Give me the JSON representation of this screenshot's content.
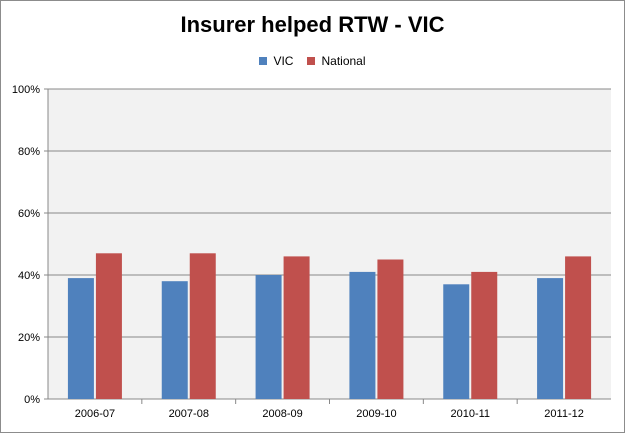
{
  "chart_data": {
    "type": "bar",
    "title": "Insurer helped RTW - VIC",
    "xlabel": "",
    "ylabel": "",
    "categories": [
      "2006-07",
      "2007-08",
      "2008-09",
      "2009-10",
      "2010-11",
      "2011-12"
    ],
    "series": [
      {
        "name": "VIC",
        "color": "#4f81bd",
        "values": [
          39,
          38,
          40,
          41,
          37,
          39
        ]
      },
      {
        "name": "National",
        "color": "#c0504d",
        "values": [
          47,
          47,
          46,
          45,
          41,
          46
        ]
      }
    ],
    "ylim": [
      0,
      100
    ],
    "yticks": [
      0,
      20,
      40,
      60,
      80,
      100
    ],
    "ytick_labels": [
      "0%",
      "20%",
      "40%",
      "60%",
      "80%",
      "100%"
    ],
    "grid": true,
    "legend_position": "top",
    "plot_background": "#f2f2f2"
  }
}
